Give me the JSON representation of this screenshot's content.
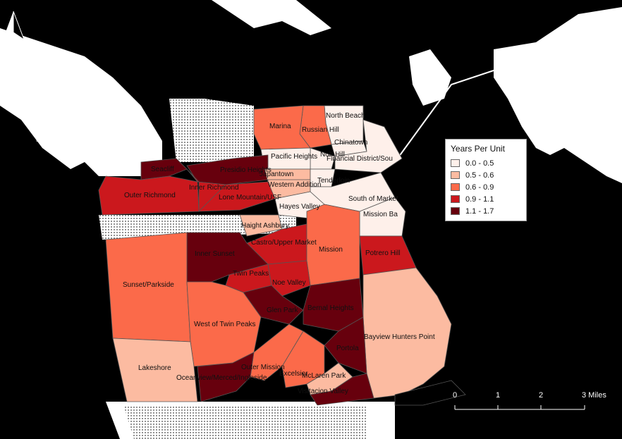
{
  "legend": {
    "title": "Years Per Unit",
    "classes": [
      {
        "label": "0.0 - 0.5",
        "color": "#fef0ea"
      },
      {
        "label": "0.5 - 0.6",
        "color": "#fcbba1"
      },
      {
        "label": "0.6 - 0.9",
        "color": "#fb6a4a"
      },
      {
        "label": "0.9 - 1.1",
        "color": "#cb181d"
      },
      {
        "label": "1.1 - 1.7",
        "color": "#67000d"
      }
    ]
  },
  "north_arrow": {
    "label": "N"
  },
  "scale_bar": {
    "ticks": [
      "0",
      "1",
      "2",
      "3 Miles"
    ]
  },
  "neighborhoods": [
    {
      "name": "North Beach",
      "class": 0
    },
    {
      "name": "Russian Hill",
      "class": 2
    },
    {
      "name": "Marina",
      "class": 2
    },
    {
      "name": "Chinatown",
      "class": 0
    },
    {
      "name": "Nob Hill",
      "class": 0
    },
    {
      "name": "Financial District/South Beach",
      "label": "Financial District/Sou",
      "class": 0
    },
    {
      "name": "Pacific Heights",
      "class": 0
    },
    {
      "name": "Seacliff",
      "label": "Seacliff",
      "class": 4
    },
    {
      "name": "Presidio Heights",
      "class": 4
    },
    {
      "name": "Japantown",
      "class": 1
    },
    {
      "name": "Tenderloin",
      "class": 0
    },
    {
      "name": "Western Addition",
      "class": 1
    },
    {
      "name": "Outer Richmond",
      "class": 3
    },
    {
      "name": "Inner Richmond",
      "class": 3
    },
    {
      "name": "Lone Mountain/USF",
      "class": 3
    },
    {
      "name": "Hayes Valley",
      "class": 0
    },
    {
      "name": "South of Market",
      "class": 0
    },
    {
      "name": "Mission Bay",
      "label": "Mission Ba",
      "class": 0
    },
    {
      "name": "Haight Ashbury",
      "class": 1
    },
    {
      "name": "Castro/Upper Market",
      "class": 3
    },
    {
      "name": "Inner Sunset",
      "class": 4
    },
    {
      "name": "Mission",
      "class": 2
    },
    {
      "name": "Potrero Hill",
      "class": 3
    },
    {
      "name": "Sunset/Parkside",
      "class": 2
    },
    {
      "name": "Twin Peaks",
      "class": 3
    },
    {
      "name": "Noe Valley",
      "class": 3
    },
    {
      "name": "Glen Park",
      "class": 4
    },
    {
      "name": "Bernal Heights",
      "class": 4
    },
    {
      "name": "West of Twin Peaks",
      "class": 2
    },
    {
      "name": "Bayview Hunters Point",
      "class": 1
    },
    {
      "name": "Portola",
      "class": 4
    },
    {
      "name": "Lakeshore",
      "class": 1
    },
    {
      "name": "Outer Mission",
      "class": 2
    },
    {
      "name": "Oceanview/Merced/Ingleside",
      "class": 4
    },
    {
      "name": "Excelsior",
      "class": 2
    },
    {
      "name": "McLaren Park",
      "class": 1
    },
    {
      "name": "Visitacion Valley",
      "label": "Visitacion Valley",
      "class": 4
    }
  ]
}
